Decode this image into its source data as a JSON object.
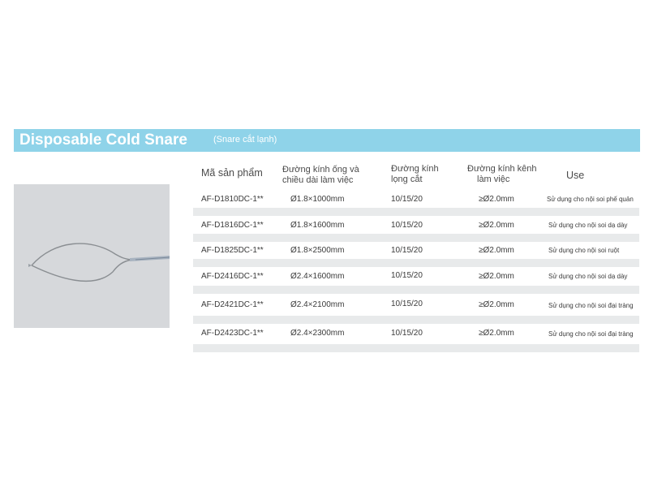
{
  "banner": {
    "title": "Disposable Cold Snare",
    "subtitle": "(Snare cắt lạnh)"
  },
  "photo": {
    "icon": "cold-snare-loop-icon"
  },
  "table": {
    "headers": {
      "code": "Mã sản phẩm",
      "sheath_line1": "Đường kính ống và",
      "sheath_line2": "chiều dài làm việc",
      "loop_line1": "Đường kính",
      "loop_line2": "lọng cắt",
      "channel_line1": "Đường kính kênh",
      "channel_line2": "làm việc",
      "use": "Use"
    },
    "rows": [
      {
        "code": "AF-D1810DC-1**",
        "sheath": "Ø1.8×1000mm",
        "loop": "10/15/20",
        "channel": "≥Ø2.0mm",
        "use": "Sử dụng cho nội soi phế quản"
      },
      {
        "code": "AF-D1816DC-1**",
        "sheath": "Ø1.8×1600mm",
        "loop": "10/15/20",
        "channel": "≥Ø2.0mm",
        "use": "Sử dụng cho nội soi dạ dày"
      },
      {
        "code": "AF-D1825DC-1**",
        "sheath": "Ø1.8×2500mm",
        "loop": "10/15/20",
        "channel": "≥Ø2.0mm",
        "use": "Sử dụng cho nội soi ruột"
      },
      {
        "code": "AF-D2416DC-1**",
        "sheath": "Ø2.4×1600mm",
        "loop": "10/15/20",
        "channel": "≥Ø2.0mm",
        "use": "Sử dụng cho nội soi dạ dày"
      },
      {
        "code": "AF-D2421DC-1**",
        "sheath": "Ø2.4×2100mm",
        "loop": "10/15/20",
        "channel": "≥Ø2.0mm",
        "use": "Sử dụng cho nội soi đại tràng"
      },
      {
        "code": "AF-D2423DC-1**",
        "sheath": "Ø2.4×2300mm",
        "loop": "10/15/20",
        "channel": "≥Ø2.0mm",
        "use": "Sử dụng cho nội soi đại tràng"
      }
    ]
  }
}
